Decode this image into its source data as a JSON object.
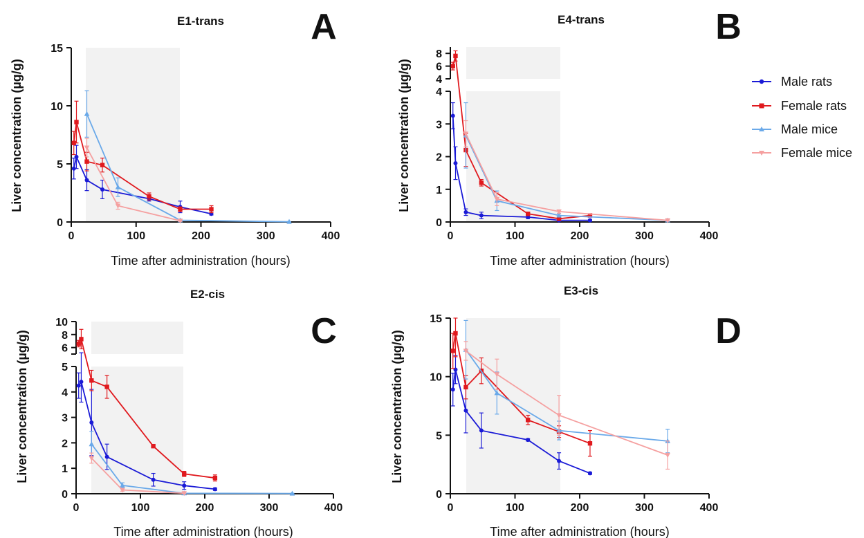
{
  "legend": [
    {
      "name": "Male rats",
      "color": "#1a1ad6",
      "marker": "circle"
    },
    {
      "name": "Female rats",
      "color": "#e0191e",
      "marker": "square"
    },
    {
      "name": "Male mice",
      "color": "#6aa9e9",
      "marker": "triangle-up"
    },
    {
      "name": "Female mice",
      "color": "#f5a0a0",
      "marker": "triangle-down"
    }
  ],
  "chart_data": [
    {
      "panel": "A",
      "type": "line",
      "title": "E1-trans",
      "xlabel": "Time after administration (hours)",
      "ylabel": "Liver concentration (µg/g)",
      "xlim": [
        0,
        400
      ],
      "xticks": [
        "0",
        "100",
        "200",
        "300",
        "400"
      ],
      "ylim": [
        0,
        15
      ],
      "yticks": [
        "0",
        "5",
        "10",
        "15"
      ],
      "shaded_x": [
        24,
        168
      ],
      "series": [
        {
          "name": "Male rats",
          "x": [
            4,
            8,
            24,
            48,
            120,
            168,
            216
          ],
          "y": [
            4.6,
            5.6,
            3.6,
            2.8,
            2.0,
            1.3,
            0.7
          ],
          "err": [
            0.9,
            1.0,
            0.9,
            0.8,
            0.2,
            0.5,
            0.1
          ]
        },
        {
          "name": "Female rats",
          "x": [
            4,
            8,
            24,
            48,
            120,
            168,
            216
          ],
          "y": [
            6.8,
            8.6,
            5.2,
            4.9,
            2.2,
            1.1,
            1.1
          ],
          "err": [
            1.0,
            1.8,
            0.8,
            0.6,
            0.3,
            0.2,
            0.3
          ]
        },
        {
          "name": "Male mice",
          "x": [
            24,
            72,
            168,
            336
          ],
          "y": [
            9.3,
            3.0,
            0.15,
            0.02
          ],
          "err": [
            2.0,
            0.8,
            0.1,
            0.02
          ]
        },
        {
          "name": "Female mice",
          "x": [
            24,
            72,
            168
          ],
          "y": [
            6.4,
            1.4,
            0.1
          ],
          "err": [
            0.8,
            0.3,
            0.05
          ]
        }
      ]
    },
    {
      "panel": "B",
      "type": "line",
      "title": "E4-trans",
      "xlabel": "Time after administration (hours)",
      "ylabel": "Liver concentration (µg/g)",
      "xlim": [
        0,
        400
      ],
      "xticks": [
        "0",
        "100",
        "200",
        "300",
        "400"
      ],
      "y_break": {
        "lower": [
          0,
          4
        ],
        "upper": [
          4,
          9
        ]
      },
      "yticks_lower": [
        "0",
        "1",
        "2",
        "3",
        "4"
      ],
      "yticks_upper": [
        "4",
        "6",
        "8"
      ],
      "shaded_x": [
        24,
        168
      ],
      "series": [
        {
          "name": "Male rats",
          "x": [
            4,
            8,
            24,
            48,
            120,
            168,
            216
          ],
          "y": [
            3.25,
            1.8,
            0.3,
            0.2,
            0.15,
            0.05,
            0.05
          ],
          "err": [
            0.4,
            0.5,
            0.1,
            0.1,
            0.05,
            0.03,
            0.03
          ]
        },
        {
          "name": "Female rats",
          "x": [
            4,
            8,
            24,
            48,
            120,
            168,
            216
          ],
          "y": [
            6.0,
            7.6,
            2.2,
            1.2,
            0.25,
            0.1,
            0.2
          ],
          "err": [
            0.6,
            0.8,
            0.5,
            0.1,
            0.05,
            0.03,
            0.03
          ]
        },
        {
          "name": "Male mice",
          "x": [
            24,
            72,
            168,
            336
          ],
          "y": [
            2.65,
            0.65,
            0.2,
            0.05
          ],
          "err": [
            1.0,
            0.3,
            0.05,
            0.02
          ]
        },
        {
          "name": "Female mice",
          "x": [
            24,
            72,
            168,
            336
          ],
          "y": [
            2.7,
            0.7,
            0.32,
            0.05
          ],
          "err": [
            0.4,
            0.2,
            0.05,
            0.02
          ]
        }
      ]
    },
    {
      "panel": "C",
      "type": "line",
      "title": "E2-cis",
      "xlabel": "Time after administration (hours)",
      "ylabel": "Liver concentration (µg/g)",
      "xlim": [
        0,
        400
      ],
      "xticks": [
        "0",
        "100",
        "200",
        "300",
        "400"
      ],
      "y_break": {
        "lower": [
          0,
          5
        ],
        "upper": [
          5,
          10
        ]
      },
      "yticks_lower": [
        "0",
        "1",
        "2",
        "3",
        "4",
        "5"
      ],
      "yticks_upper": [
        "6",
        "8",
        "10"
      ],
      "shaded_x": [
        24,
        168
      ],
      "series": [
        {
          "name": "Male rats",
          "x": [
            4,
            8,
            24,
            48,
            120,
            168,
            216
          ],
          "y": [
            4.25,
            4.4,
            2.8,
            1.45,
            0.55,
            0.32,
            0.18
          ],
          "err": [
            0.5,
            0.8,
            1.3,
            0.5,
            0.25,
            0.15,
            0.05
          ]
        },
        {
          "name": "Female rats",
          "x": [
            4,
            8,
            24,
            48,
            120,
            168,
            216
          ],
          "y": [
            6.6,
            7.3,
            4.45,
            4.2,
            1.87,
            0.78,
            0.62
          ],
          "err": [
            0.5,
            1.5,
            0.4,
            0.45,
            0.05,
            0.1,
            0.12
          ]
        },
        {
          "name": "Male mice",
          "x": [
            24,
            72,
            168,
            336
          ],
          "y": [
            1.95,
            0.33,
            0.02,
            0.01
          ],
          "err": [
            0.5,
            0.1,
            0.01,
            0.01
          ]
        },
        {
          "name": "Female mice",
          "x": [
            24,
            72,
            168
          ],
          "y": [
            1.4,
            0.15,
            0.02
          ],
          "err": [
            0.2,
            0.05,
            0.01
          ]
        }
      ]
    },
    {
      "panel": "D",
      "type": "line",
      "title": "E3-cis",
      "xlabel": "Time after administration (hours)",
      "ylabel": "Liver concentration (µg/g)",
      "xlim": [
        0,
        400
      ],
      "xticks": [
        "0",
        "100",
        "200",
        "300",
        "400"
      ],
      "ylim": [
        0,
        15
      ],
      "yticks": [
        "0",
        "5",
        "10",
        "15"
      ],
      "shaded_x": [
        24,
        168
      ],
      "series": [
        {
          "name": "Male rats",
          "x": [
            4,
            8,
            24,
            48,
            120,
            168,
            216
          ],
          "y": [
            8.9,
            10.6,
            7.1,
            5.4,
            4.6,
            2.8,
            1.75
          ],
          "err": [
            1.4,
            1.2,
            1.9,
            1.5,
            0.1,
            0.7,
            0.1
          ]
        },
        {
          "name": "Female rats",
          "x": [
            4,
            8,
            24,
            48,
            120,
            168,
            216
          ],
          "y": [
            12.2,
            13.7,
            9.1,
            10.5,
            6.3,
            5.3,
            4.3
          ],
          "err": [
            1.5,
            2.0,
            1.0,
            1.1,
            0.4,
            0.5,
            1.1
          ]
        },
        {
          "name": "Male mice",
          "x": [
            24,
            72,
            168,
            336
          ],
          "y": [
            12.3,
            8.6,
            5.4,
            4.5
          ],
          "err": [
            2.5,
            1.8,
            0.8,
            1.0
          ]
        },
        {
          "name": "Female mice",
          "x": [
            24,
            72,
            168,
            336
          ],
          "y": [
            12.2,
            10.2,
            6.7,
            3.3
          ],
          "err": [
            0.8,
            1.3,
            1.7,
            1.2
          ]
        }
      ]
    }
  ]
}
